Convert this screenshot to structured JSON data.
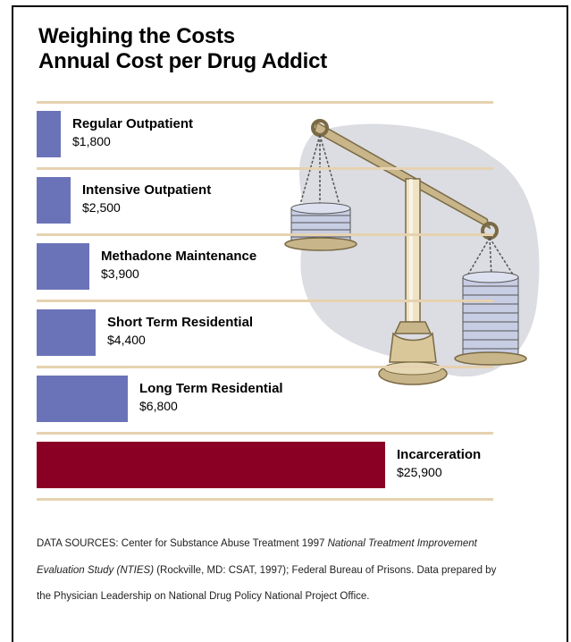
{
  "chart_data": {
    "type": "bar",
    "orientation": "horizontal",
    "title": "Weighing the Costs",
    "subtitle": "Annual Cost per Drug Addict",
    "categories": [
      "Regular Outpatient",
      "Intensive Outpatient",
      "Methadone Maintenance",
      "Short Term Residential",
      "Long Term Residential",
      "Incarceration"
    ],
    "values": [
      1800,
      2500,
      3900,
      4400,
      6800,
      25900
    ],
    "value_labels": [
      "$1,800",
      "$2,500",
      "$3,900",
      "$4,400",
      "$6,800",
      "$25,900"
    ],
    "colors": [
      "#6b73b8",
      "#6b73b8",
      "#6b73b8",
      "#6b73b8",
      "#6b73b8",
      "#8a0025"
    ],
    "xlim": [
      0,
      25900
    ],
    "grid": false,
    "legend": "none"
  },
  "source": {
    "prefix": "DATA SOURCES: Center for Substance Abuse Treatment 1997 ",
    "italic": "National Treatment Improvement Evaluation Study (NTIES)",
    "suffix": " (Rockville, MD: CSAT, 1997); Federal Bureau of Prisons. Data prepared by the Physician Leadership on National Drug Policy National Project Office."
  },
  "illustration": {
    "icon": "balance-scale-icon",
    "colors": {
      "brass": "#c9b58a",
      "brass_dark": "#7a6a45",
      "coins": "#c7cde3",
      "shadow": "#dcdde2"
    }
  }
}
